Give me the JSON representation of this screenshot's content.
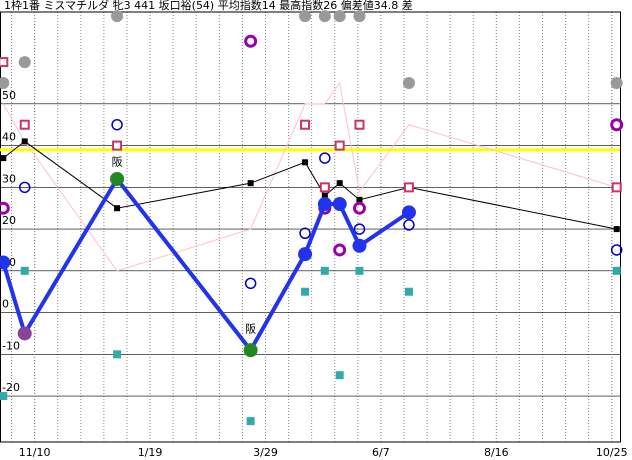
{
  "chart_data": {
    "type": "line",
    "title": "1枠1番 ミスマチルダ 牝3 441 坂口裕(54) 平均指数14 最高指数26 偏差値34.8 差",
    "xlim": [
      -21,
      355
    ],
    "ylim": [
      -31,
      72
    ],
    "xticks": [
      {
        "value": 0,
        "label": "11/10"
      },
      {
        "value": 70,
        "label": "1/19"
      },
      {
        "value": 140,
        "label": "3/29"
      },
      {
        "value": 210,
        "label": "6/7"
      },
      {
        "value": 280,
        "label": "8/16"
      },
      {
        "value": 350,
        "label": "10/25"
      }
    ],
    "yticks": [
      -20,
      -10,
      0,
      10,
      20,
      30,
      40,
      50
    ],
    "grid": true,
    "hline": {
      "value": 39,
      "color": "#ffff00"
    },
    "series": [
      {
        "kind": "line",
        "color": "#ffc0cb",
        "width": 1,
        "x": [
          -19,
          -6,
          50,
          131,
          164,
          176,
          185,
          197,
          227,
          353
        ],
        "values": [
          50,
          41,
          10,
          20,
          50,
          50,
          55,
          29,
          45,
          30
        ]
      },
      {
        "kind": "line",
        "color": "#000000",
        "width": 1,
        "marker": "square",
        "x": [
          -19,
          -6,
          50,
          131,
          164,
          176,
          185,
          197,
          227,
          353
        ],
        "values": [
          37,
          41,
          25,
          31,
          36,
          28,
          31,
          27,
          30,
          20
        ]
      },
      {
        "kind": "scatter",
        "color": "#999999",
        "marker": "dot",
        "x": [
          -19,
          -6,
          50,
          164,
          176,
          185,
          197,
          227,
          353
        ],
        "values": [
          55,
          60,
          71,
          71,
          71,
          71,
          71,
          55,
          55
        ]
      },
      {
        "kind": "scatter",
        "color": "#cc3366",
        "marker": "hollow-square",
        "x": [
          -19,
          -6,
          50,
          164,
          176,
          185,
          197,
          227,
          353
        ],
        "values": [
          60,
          45,
          40,
          45,
          30,
          40,
          45,
          30,
          30
        ]
      },
      {
        "kind": "scatter",
        "color": "#33aaaa",
        "marker": "small-square",
        "x": [
          -19,
          -6,
          50,
          131,
          164,
          176,
          185,
          197,
          227,
          353
        ],
        "values": [
          -20,
          10,
          -10,
          -26,
          5,
          10,
          -15,
          10,
          5,
          10
        ]
      },
      {
        "kind": "scatter",
        "color": "#0000cc",
        "marker": "hollow-circle",
        "x": [
          -6,
          50,
          131,
          164,
          176,
          197,
          227,
          353
        ],
        "values": [
          30,
          45,
          7,
          19,
          37,
          20,
          21,
          15
        ]
      },
      {
        "kind": "scatter",
        "color": "#9900aa",
        "marker": "hollow-circle-thick",
        "x": [
          -19,
          131,
          176,
          185,
          197,
          353
        ],
        "values": [
          25,
          65,
          25,
          15,
          25,
          45
        ]
      },
      {
        "kind": "line",
        "color": "#2233ee",
        "width": 4,
        "marker": "dot-large",
        "x": [
          -19,
          -6,
          50,
          131,
          164,
          176,
          185,
          197,
          227
        ],
        "values": [
          12,
          -5,
          32,
          -9,
          14,
          26,
          26,
          16,
          24
        ],
        "colors": [
          "#2233ee",
          "#884499",
          "#228822",
          "#228822",
          "#2233ee",
          "#2233ee",
          "#2233ee",
          "#2233ee",
          "#2233ee"
        ]
      }
    ],
    "annotations": [
      {
        "x": 50,
        "y": 36,
        "text": "阪"
      },
      {
        "x": 131,
        "y": -4,
        "text": "阪"
      }
    ]
  }
}
